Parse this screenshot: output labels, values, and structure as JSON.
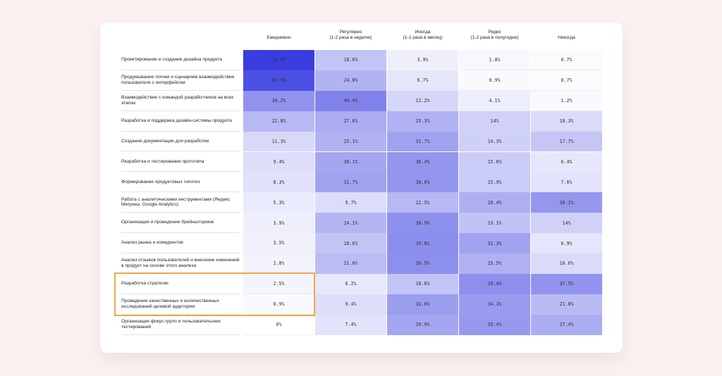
{
  "chart_data": {
    "type": "heatmap",
    "columns": [
      "Ежедневно",
      "Регулярно\n(1-2 раза в неделю)",
      "Иногда\n(1-2 раза в месяц)",
      "Редко\n(1-2 раза в полугодие)",
      "Никогда"
    ],
    "rows": [
      {
        "label": "Проектирование и создание дизайна продукта",
        "values": [
          "74.9%",
          "18.6%",
          "3.9%",
          "1.8%",
          "0.7%"
        ]
      },
      {
        "label": "Продумывание логики и сценариев взаимодействия пользователя с интерфейсом",
        "values": [
          "66.9%",
          "24.8%",
          "6.7%",
          "0.9%",
          "0.7%"
        ]
      },
      {
        "label": "Взаимодействие с командой разработчиков на всех этапах",
        "values": [
          "38.2%",
          "44.4%",
          "12.2%",
          "4.1%",
          "1.2%"
        ]
      },
      {
        "label": "Разработка и поддержка дизайн-системы продукта",
        "values": [
          "22.8%",
          "27.6%",
          "25.3%",
          "14%",
          "10.3%"
        ]
      },
      {
        "label": "Создание документации для разработки",
        "values": [
          "11.3%",
          "25.1%",
          "31.7%",
          "14.3%",
          "17.7%"
        ]
      },
      {
        "label": "Разработка и тестирование прототипа",
        "values": [
          "9.4%",
          "30.1%",
          "36.4%",
          "15.6%",
          "6.4%"
        ]
      },
      {
        "label": "Формирование продуктовых гипотез",
        "values": [
          "8.3%",
          "31.7%",
          "36.6%",
          "15.9%",
          "7.6%"
        ]
      },
      {
        "label": "Работа с аналитическими инструментами (Яндекс Метрика, Google Analytics)",
        "values": [
          "5.3%",
          "9.7%",
          "22.5%",
          "26.4%",
          "36.1%"
        ]
      },
      {
        "label": "Организация и проведение брейнштормов",
        "values": [
          "3.9%",
          "24.1%",
          "38.9%",
          "19.1%",
          "14%"
        ]
      },
      {
        "label": "Анализ рынка и конкурентов",
        "values": [
          "3.5%",
          "18.6%",
          "39.8%",
          "31.3%",
          "6.9%"
        ]
      },
      {
        "label": "Анализ отзывов пользователей и внесение изменений в продукт на основе этого анализа",
        "values": [
          "2.8%",
          "21.6%",
          "39.5%",
          "25.5%",
          "10.6%"
        ]
      },
      {
        "label": "Разработка стратегии",
        "values": [
          "2.5%",
          "6.2%",
          "18.6%",
          "39.4%",
          "37.5%"
        ]
      },
      {
        "label": "Проведение качественных и количественных исследований целевой аудитории",
        "values": [
          "0.9%",
          "9.4%",
          "33.6%",
          "34.3%",
          "21.8%"
        ]
      },
      {
        "label": "Организация фокус-групп и пользовательских тестирований",
        "values": [
          "0%",
          "7.4%",
          "29.9%",
          "35.4%",
          "27.4%"
        ]
      }
    ],
    "highlighted_rows": [
      "Разработка стратегии",
      "Проведение качественных и количественных исследований целевой аудитории"
    ],
    "highlight_color": "#f0a74b",
    "scale_color_high": "#3a3de0",
    "scale_color_low": "#ffffff"
  }
}
